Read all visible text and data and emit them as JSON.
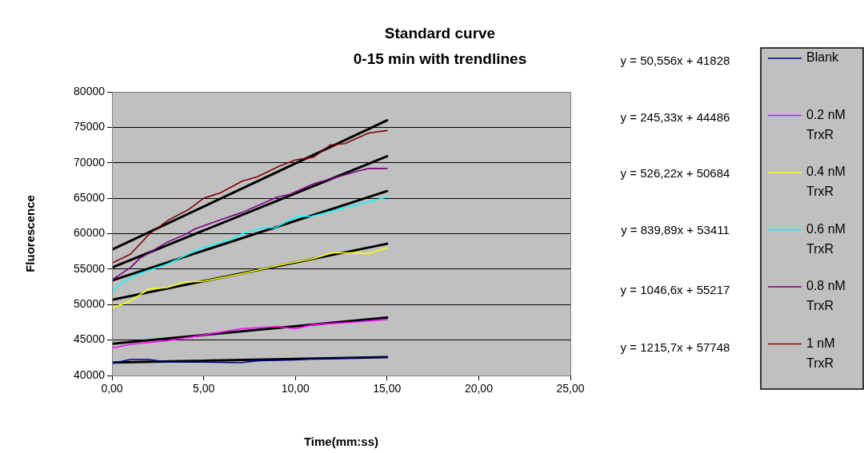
{
  "chart_data": {
    "type": "line",
    "title": "Standard curve\n0-15 min with trendlines",
    "xlabel": "Time(mm:ss)",
    "ylabel": "Fluorescence",
    "xlim": [
      0,
      25
    ],
    "xticks": [
      {
        "value": 0,
        "label": "0,00"
      },
      {
        "value": 5,
        "label": "5,00"
      },
      {
        "value": 10,
        "label": "10,00"
      },
      {
        "value": 15,
        "label": "15,00"
      },
      {
        "value": 20,
        "label": "20,00"
      },
      {
        "value": 25,
        "label": "25,00"
      }
    ],
    "ylim": [
      40000,
      80000
    ],
    "yticks": [
      40000,
      45000,
      50000,
      55000,
      60000,
      65000,
      70000,
      75000,
      80000
    ],
    "grid": "y",
    "legend": "right",
    "marker": "none",
    "line_style": "solid",
    "series": [
      {
        "name": "Blank",
        "color": "#000080",
        "x": [
          0,
          1,
          2,
          3,
          5,
          7,
          8,
          10,
          11,
          12,
          14,
          15
        ],
        "values": [
          41700,
          42250,
          42250,
          41900,
          41900,
          41800,
          42100,
          42200,
          42400,
          42400,
          42600,
          42600
        ]
      },
      {
        "name": "0.2 nM TrxR",
        "color": "#ff00ff",
        "x": [
          0,
          1,
          3,
          5,
          7,
          9,
          10,
          11,
          13,
          15
        ],
        "values": [
          43860,
          44400,
          44900,
          45700,
          46600,
          46900,
          46600,
          47200,
          47500,
          47900
        ]
      },
      {
        "name": "0.4 nM TrxR",
        "color": "#ffff00",
        "x": [
          0,
          1,
          2,
          3,
          4,
          5,
          7,
          9,
          10,
          11,
          12,
          13,
          14,
          15
        ],
        "values": [
          49500,
          50500,
          52200,
          52400,
          53200,
          53300,
          54300,
          55500,
          56000,
          56500,
          57300,
          57300,
          57200,
          58000
        ]
      },
      {
        "name": "0.6 nM TrxR",
        "color": "#00ffff",
        "x": [
          0,
          0.5,
          1.5,
          3,
          4.9,
          6.5,
          7.1,
          8.2,
          8.9,
          10.1,
          10.9,
          14.1,
          15
        ],
        "values": [
          51800,
          53000,
          54400,
          55700,
          58000,
          59150,
          60000,
          60850,
          60850,
          62450,
          62450,
          64600,
          65150
        ]
      },
      {
        "name": "0.8 nM TrxR",
        "color": "#800080",
        "x": [
          0,
          1,
          1.5,
          3,
          4,
          4.5,
          5.9,
          7.1,
          9,
          9.7,
          11,
          12.3,
          13.5,
          14,
          15
        ],
        "values": [
          53500,
          55200,
          56500,
          58800,
          59900,
          60650,
          61950,
          63000,
          65150,
          65550,
          67050,
          68000,
          68900,
          69200,
          69200
        ]
      },
      {
        "name": "1 nM TrxR",
        "color": "#800000",
        "x": [
          0,
          1,
          1.75,
          2,
          3.1,
          4.2,
          5,
          5.9,
          7.1,
          7.9,
          9.1,
          10,
          11,
          11.9,
          12.7,
          14,
          15
        ],
        "values": [
          55850,
          57100,
          59150,
          59900,
          61950,
          63450,
          65000,
          65750,
          67400,
          68000,
          69500,
          70400,
          70800,
          72500,
          72700,
          74200,
          74550
        ]
      },
      {
        "type": "line",
        "color": "#000000",
        "x": [
          0,
          15
        ],
        "values": [
          41828,
          42586
        ]
      },
      {
        "type": "line",
        "color": "#000000",
        "x": [
          0,
          15
        ],
        "values": [
          44486,
          48166
        ]
      },
      {
        "type": "line",
        "color": "#000000",
        "x": [
          0,
          15
        ],
        "values": [
          50684,
          58577
        ]
      },
      {
        "type": "line",
        "color": "#000000",
        "x": [
          0,
          15
        ],
        "values": [
          53411,
          66009
        ]
      },
      {
        "type": "line",
        "color": "#000000",
        "x": [
          0,
          15
        ],
        "values": [
          55217,
          70916
        ]
      },
      {
        "type": "line",
        "color": "#000000",
        "x": [
          0,
          15
        ],
        "values": [
          57748,
          75984
        ]
      }
    ],
    "annotations": [
      "y = 50,556x + 41828",
      "y = 245,33x + 44486",
      "y = 526,22x + 50684",
      "y = 839,89x + 53411",
      "y = 1046,6x + 55217",
      "y = 1215,7x + 57748"
    ]
  }
}
